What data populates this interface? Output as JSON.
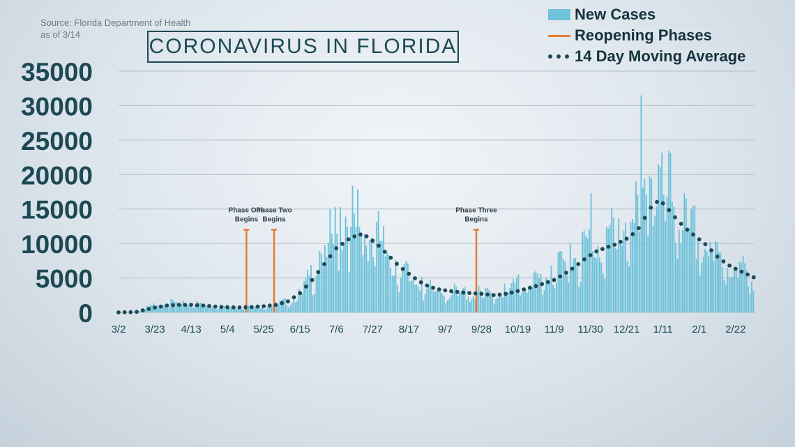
{
  "source": {
    "line1": "Source: Florida Department of Health",
    "line2": "as of 3/14"
  },
  "legend": [
    {
      "label": "New Cases",
      "kind": "bar",
      "color": "#6ec2da"
    },
    {
      "label": "Reopening Phases",
      "kind": "line",
      "color": "#e87b36"
    },
    {
      "label": "14 Day Moving Average",
      "kind": "dots",
      "color": "#1d4955"
    }
  ],
  "chart_data": {
    "type": "bar",
    "title": "CORONAVIRUS IN FLORIDA",
    "ylim": [
      0,
      35000
    ],
    "yticks": [
      0,
      5000,
      10000,
      15000,
      20000,
      25000,
      30000,
      35000
    ],
    "grid": true,
    "legend_position": "top-right",
    "xtick_labels": [
      "3/2",
      "3/23",
      "4/13",
      "5/4",
      "5/25",
      "6/15",
      "7/6",
      "7/27",
      "8/17",
      "9/7",
      "9/28",
      "10/19",
      "11/9",
      "11/30",
      "12/21",
      "1/11",
      "2/1",
      "2/22"
    ],
    "xtick_day_offsets": [
      0,
      21,
      42,
      63,
      84,
      105,
      126,
      147,
      168,
      189,
      210,
      231,
      252,
      273,
      294,
      315,
      336,
      357
    ],
    "series": [
      {
        "name": "New Cases",
        "type": "bar",
        "color": "#6ec2da",
        "keypoints": [
          [
            0,
            0
          ],
          [
            7,
            50
          ],
          [
            10,
            150
          ],
          [
            14,
            400
          ],
          [
            18,
            700
          ],
          [
            21,
            900
          ],
          [
            24,
            1100
          ],
          [
            27,
            1200
          ],
          [
            32,
            1150
          ],
          [
            35,
            1000
          ],
          [
            42,
            1100
          ],
          [
            49,
            950
          ],
          [
            56,
            800
          ],
          [
            63,
            700
          ],
          [
            70,
            650
          ],
          [
            77,
            700
          ],
          [
            84,
            800
          ],
          [
            91,
            1000
          ],
          [
            98,
            1400
          ],
          [
            103,
            2200
          ],
          [
            108,
            3300
          ],
          [
            112,
            5000
          ],
          [
            116,
            6500
          ],
          [
            120,
            8500
          ],
          [
            124,
            9500
          ],
          [
            128,
            11000
          ],
          [
            133,
            11800
          ],
          [
            138,
            11200
          ],
          [
            143,
            10500
          ],
          [
            148,
            9500
          ],
          [
            152,
            8500
          ],
          [
            156,
            7200
          ],
          [
            160,
            6000
          ],
          [
            165,
            5000
          ],
          [
            170,
            4000
          ],
          [
            175,
            3200
          ],
          [
            180,
            2800
          ],
          [
            186,
            2600
          ],
          [
            192,
            2500
          ],
          [
            198,
            2500
          ],
          [
            204,
            2400
          ],
          [
            210,
            2300
          ],
          [
            215,
            2200
          ],
          [
            220,
            2500
          ],
          [
            226,
            2900
          ],
          [
            232,
            3300
          ],
          [
            238,
            3700
          ],
          [
            244,
            4100
          ],
          [
            250,
            4600
          ],
          [
            256,
            5500
          ],
          [
            262,
            6500
          ],
          [
            268,
            7800
          ],
          [
            274,
            8600
          ],
          [
            280,
            9000
          ],
          [
            286,
            9500
          ],
          [
            292,
            10500
          ],
          [
            298,
            11500
          ],
          [
            302,
            12500
          ],
          [
            306,
            14000
          ],
          [
            310,
            15500
          ],
          [
            314,
            15500
          ],
          [
            318,
            14500
          ],
          [
            322,
            13000
          ],
          [
            326,
            11500
          ],
          [
            330,
            10500
          ],
          [
            335,
            9000
          ],
          [
            340,
            8000
          ],
          [
            346,
            7000
          ],
          [
            352,
            6000
          ],
          [
            358,
            5500
          ],
          [
            362,
            5000
          ],
          [
            366,
            4800
          ],
          [
            367,
            4200
          ]
        ],
        "spikes": [
          [
            116,
            8900
          ],
          [
            117,
            8500
          ],
          [
            119,
            9800
          ],
          [
            121,
            10100
          ],
          [
            124,
            9900
          ],
          [
            126,
            11400
          ],
          [
            128,
            15300
          ],
          [
            131,
            13900
          ],
          [
            134,
            12400
          ],
          [
            137,
            12400
          ],
          [
            139,
            12400
          ],
          [
            143,
            9700
          ],
          [
            160,
            7600
          ],
          [
            175,
            5200
          ],
          [
            231,
            5500
          ],
          [
            250,
            6800
          ],
          [
            261,
            10100
          ],
          [
            273,
            17300
          ],
          [
            293,
            13000
          ],
          [
            298,
            13000
          ],
          [
            300,
            17000
          ],
          [
            302,
            31500
          ],
          [
            305,
            17000
          ],
          [
            307,
            19700
          ],
          [
            308,
            19400
          ],
          [
            315,
            17000
          ],
          [
            317,
            16800
          ],
          [
            320,
            16000
          ],
          [
            331,
            15000
          ]
        ]
      },
      {
        "name": "14 Day Moving Average",
        "type": "line",
        "style": "dotted",
        "color": "#1d4955",
        "keypoints": [
          [
            0,
            0
          ],
          [
            10,
            50
          ],
          [
            14,
            300
          ],
          [
            21,
            700
          ],
          [
            28,
            1000
          ],
          [
            35,
            1100
          ],
          [
            42,
            1100
          ],
          [
            49,
            1000
          ],
          [
            56,
            850
          ],
          [
            63,
            750
          ],
          [
            70,
            720
          ],
          [
            77,
            780
          ],
          [
            84,
            900
          ],
          [
            91,
            1100
          ],
          [
            98,
            1600
          ],
          [
            105,
            2800
          ],
          [
            112,
            4700
          ],
          [
            119,
            7000
          ],
          [
            126,
            9300
          ],
          [
            133,
            10600
          ],
          [
            138,
            11200
          ],
          [
            140,
            11300
          ],
          [
            144,
            11000
          ],
          [
            150,
            9800
          ],
          [
            156,
            8300
          ],
          [
            162,
            6800
          ],
          [
            168,
            5600
          ],
          [
            174,
            4500
          ],
          [
            180,
            3700
          ],
          [
            186,
            3300
          ],
          [
            192,
            3100
          ],
          [
            198,
            2900
          ],
          [
            204,
            2800
          ],
          [
            210,
            2700
          ],
          [
            216,
            2500
          ],
          [
            222,
            2600
          ],
          [
            228,
            2900
          ],
          [
            234,
            3300
          ],
          [
            240,
            3700
          ],
          [
            246,
            4200
          ],
          [
            252,
            4700
          ],
          [
            258,
            5600
          ],
          [
            264,
            6600
          ],
          [
            270,
            7800
          ],
          [
            276,
            8800
          ],
          [
            282,
            9400
          ],
          [
            288,
            9900
          ],
          [
            294,
            10700
          ],
          [
            300,
            11800
          ],
          [
            304,
            13500
          ],
          [
            308,
            15200
          ],
          [
            311,
            16000
          ],
          [
            314,
            16100
          ],
          [
            318,
            15000
          ],
          [
            323,
            13500
          ],
          [
            328,
            12200
          ],
          [
            334,
            11000
          ],
          [
            340,
            9800
          ],
          [
            346,
            8200
          ],
          [
            352,
            7000
          ],
          [
            358,
            6200
          ],
          [
            364,
            5500
          ],
          [
            367,
            5100
          ]
        ]
      }
    ],
    "annotations": [
      {
        "label": "Phase One\nBegins",
        "day": 74,
        "value": 12000,
        "color": "#e87b36"
      },
      {
        "label": "Phase Two\nBegins",
        "day": 90,
        "value": 12000,
        "color": "#e87b36"
      },
      {
        "label": "Phase Three\nBegins",
        "day": 207,
        "value": 12000,
        "color": "#e87b36"
      }
    ]
  }
}
